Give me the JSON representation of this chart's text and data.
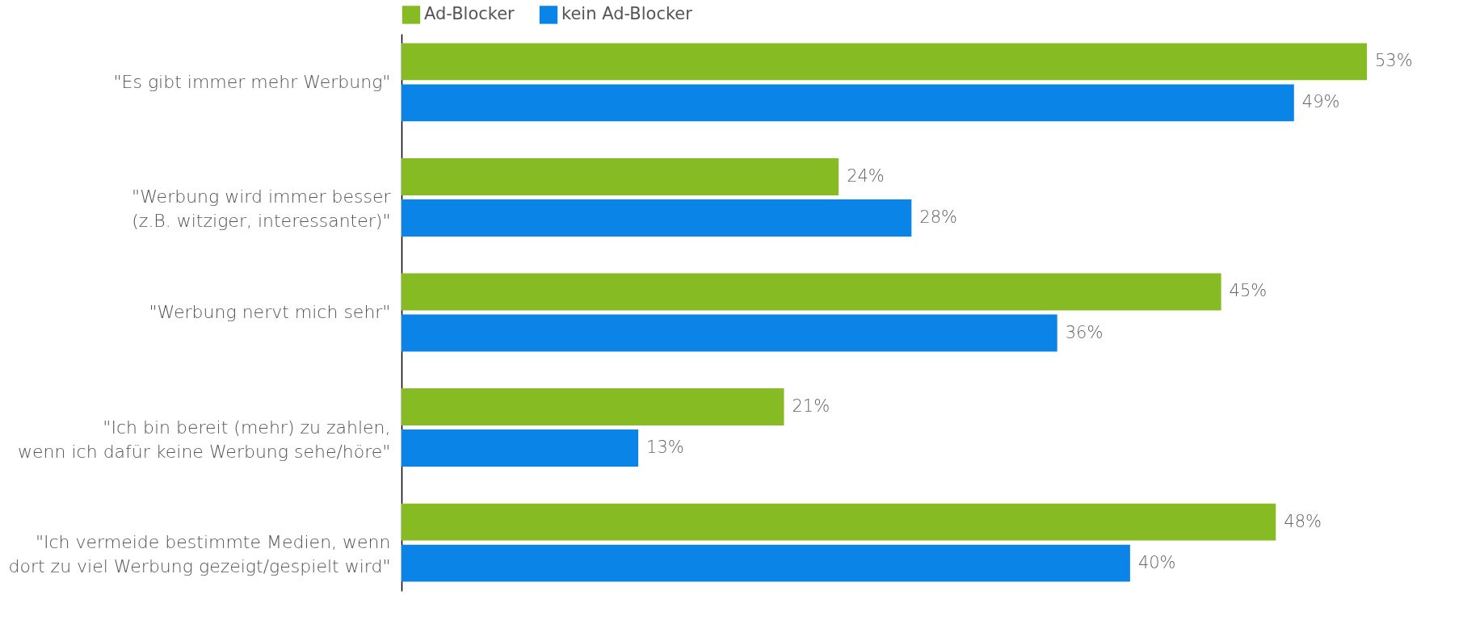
{
  "chart_data": {
    "type": "bar",
    "orientation": "horizontal",
    "legend": "top",
    "categories": [
      "\"Es gibt immer mehr Werbung\"",
      "\"Werbung wird immer besser\n(z.B. witziger, interessanter)\"",
      "\"Werbung nervt mich sehr\"",
      "\"Ich bin bereit (mehr) zu zahlen,\nwenn ich dafür keine Werbung sehe/höre\"",
      "\"Ich vermeide bestimmte Medien, wenn\ndort zu viel Werbung gezeigt/gespielt wird\""
    ],
    "series": [
      {
        "name": "Ad-Blocker",
        "color": "#86bb23",
        "values": [
          53,
          24,
          45,
          21,
          48
        ],
        "value_labels": [
          "53%",
          "24%",
          "45%",
          "21%",
          "48%"
        ]
      },
      {
        "name": "kein Ad-Blocker",
        "color": "#0a84e6",
        "values": [
          49,
          28,
          36,
          13,
          40
        ],
        "value_labels": [
          "49%",
          "28%",
          "36%",
          "13%",
          "40%"
        ]
      }
    ]
  }
}
